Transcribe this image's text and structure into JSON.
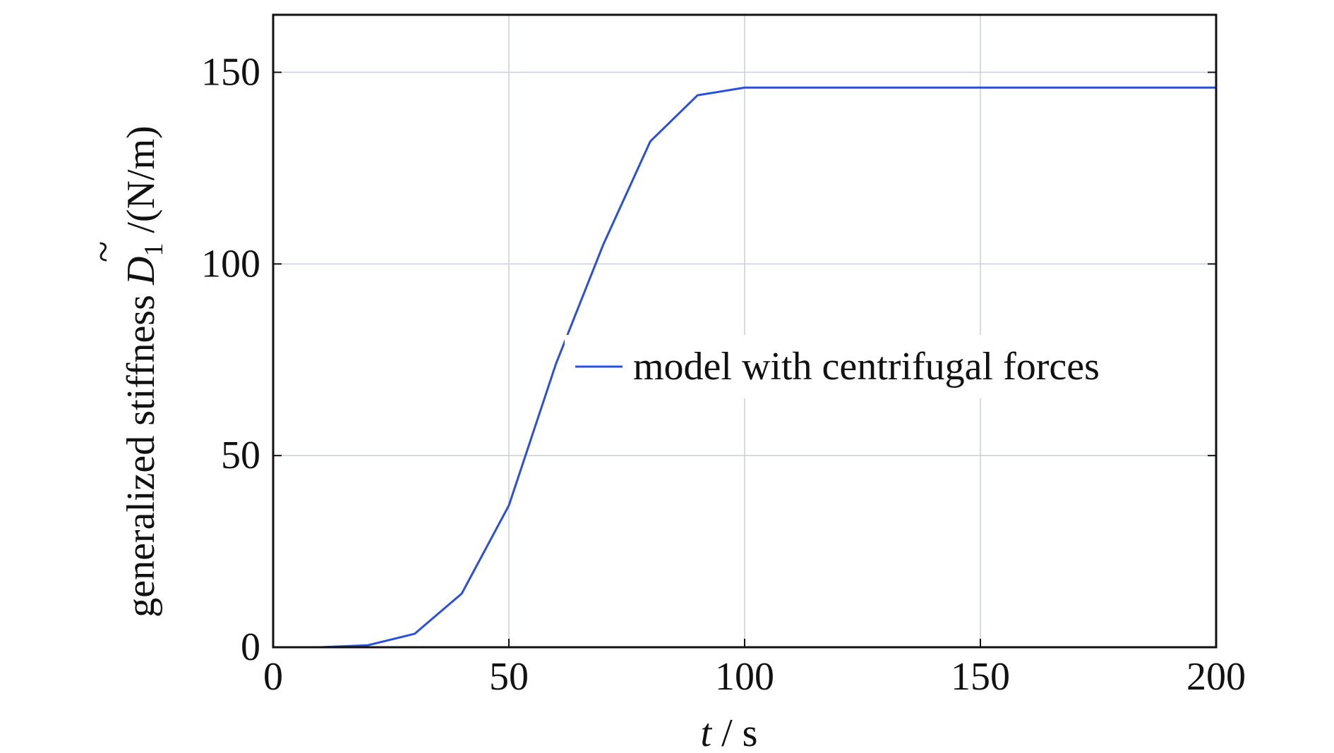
{
  "chart_data": {
    "type": "line",
    "xlabel": {
      "variable": "t",
      "unit": "/ s"
    },
    "ylabel": {
      "prefix": "generalized stiffness ",
      "tilde": "~",
      "symbol": "D",
      "subscript": "1",
      "unit": " /(N/m)"
    },
    "xlim": [
      0,
      200
    ],
    "ylim": [
      0,
      165
    ],
    "xticks": [
      0,
      50,
      100,
      150,
      200
    ],
    "yticks": [
      0,
      50,
      100,
      150
    ],
    "grid": true,
    "legend_position": "center-right",
    "series": [
      {
        "name": "model with centrifugal forces",
        "color": "#2a4fe0",
        "x": [
          0,
          10,
          20,
          30,
          40,
          50,
          60,
          70,
          80,
          90,
          100,
          150,
          200
        ],
        "y": [
          0,
          0,
          0.5,
          3.5,
          14,
          37,
          74,
          105,
          132,
          144,
          146,
          146,
          146
        ]
      }
    ]
  }
}
